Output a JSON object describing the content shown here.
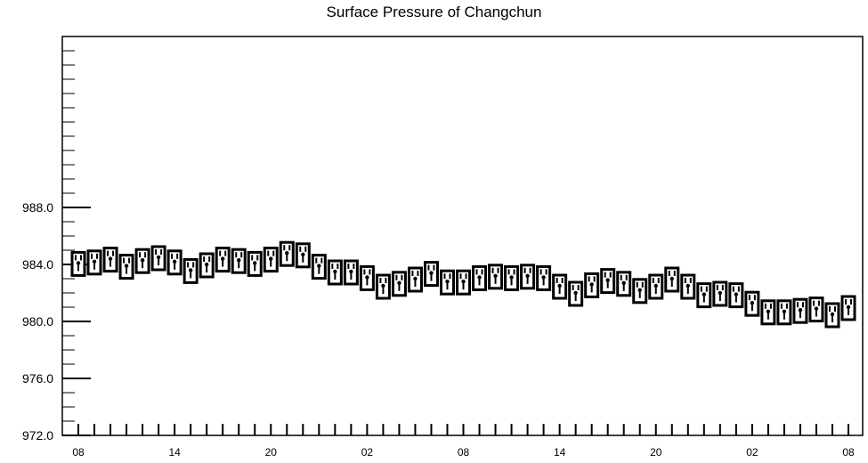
{
  "chart_data": {
    "type": "box",
    "title": "Surface Pressure of Changchun",
    "xlabel": "",
    "ylabel": "",
    "ylim": [
      972.0,
      1000.0
    ],
    "y_major_ticks": [
      972.0,
      976.0,
      980.0,
      984.0,
      988.0
    ],
    "y_tick_labels": [
      "972.0",
      "976.0",
      "980.0",
      "984.0",
      "988.0"
    ],
    "x_tick_labels": [
      "08",
      "14",
      "20",
      "02",
      "08",
      "14",
      "20",
      "02",
      "08"
    ],
    "x_tick_hours": [
      0,
      6,
      12,
      18,
      24,
      30,
      36,
      42,
      48
    ],
    "xlim": [
      0,
      48
    ],
    "grid": false,
    "series": [
      {
        "x": [
          0,
          1,
          2,
          3,
          4,
          5,
          6,
          7,
          8,
          9,
          10,
          11,
          12,
          13,
          14,
          15,
          16,
          17,
          18,
          19,
          20,
          21,
          22,
          23,
          24,
          25,
          26,
          27,
          28,
          29,
          30,
          31,
          32,
          33,
          34,
          35,
          36,
          37,
          38,
          39,
          40,
          41,
          42,
          43,
          44,
          45,
          46,
          47,
          48
        ],
        "values": [
          984.1,
          984.2,
          984.4,
          983.9,
          984.3,
          984.5,
          984.2,
          983.6,
          984.0,
          984.4,
          984.3,
          984.1,
          984.4,
          984.8,
          984.7,
          983.9,
          983.5,
          983.5,
          983.1,
          982.5,
          982.7,
          983.0,
          983.4,
          982.8,
          982.8,
          983.1,
          983.2,
          983.1,
          983.2,
          983.1,
          982.5,
          982.0,
          982.6,
          982.9,
          982.7,
          982.2,
          982.5,
          983.0,
          982.5,
          981.9,
          982.0,
          981.9,
          981.3,
          980.7,
          980.7,
          980.8,
          980.9,
          980.5,
          981.0
        ]
      }
    ]
  }
}
